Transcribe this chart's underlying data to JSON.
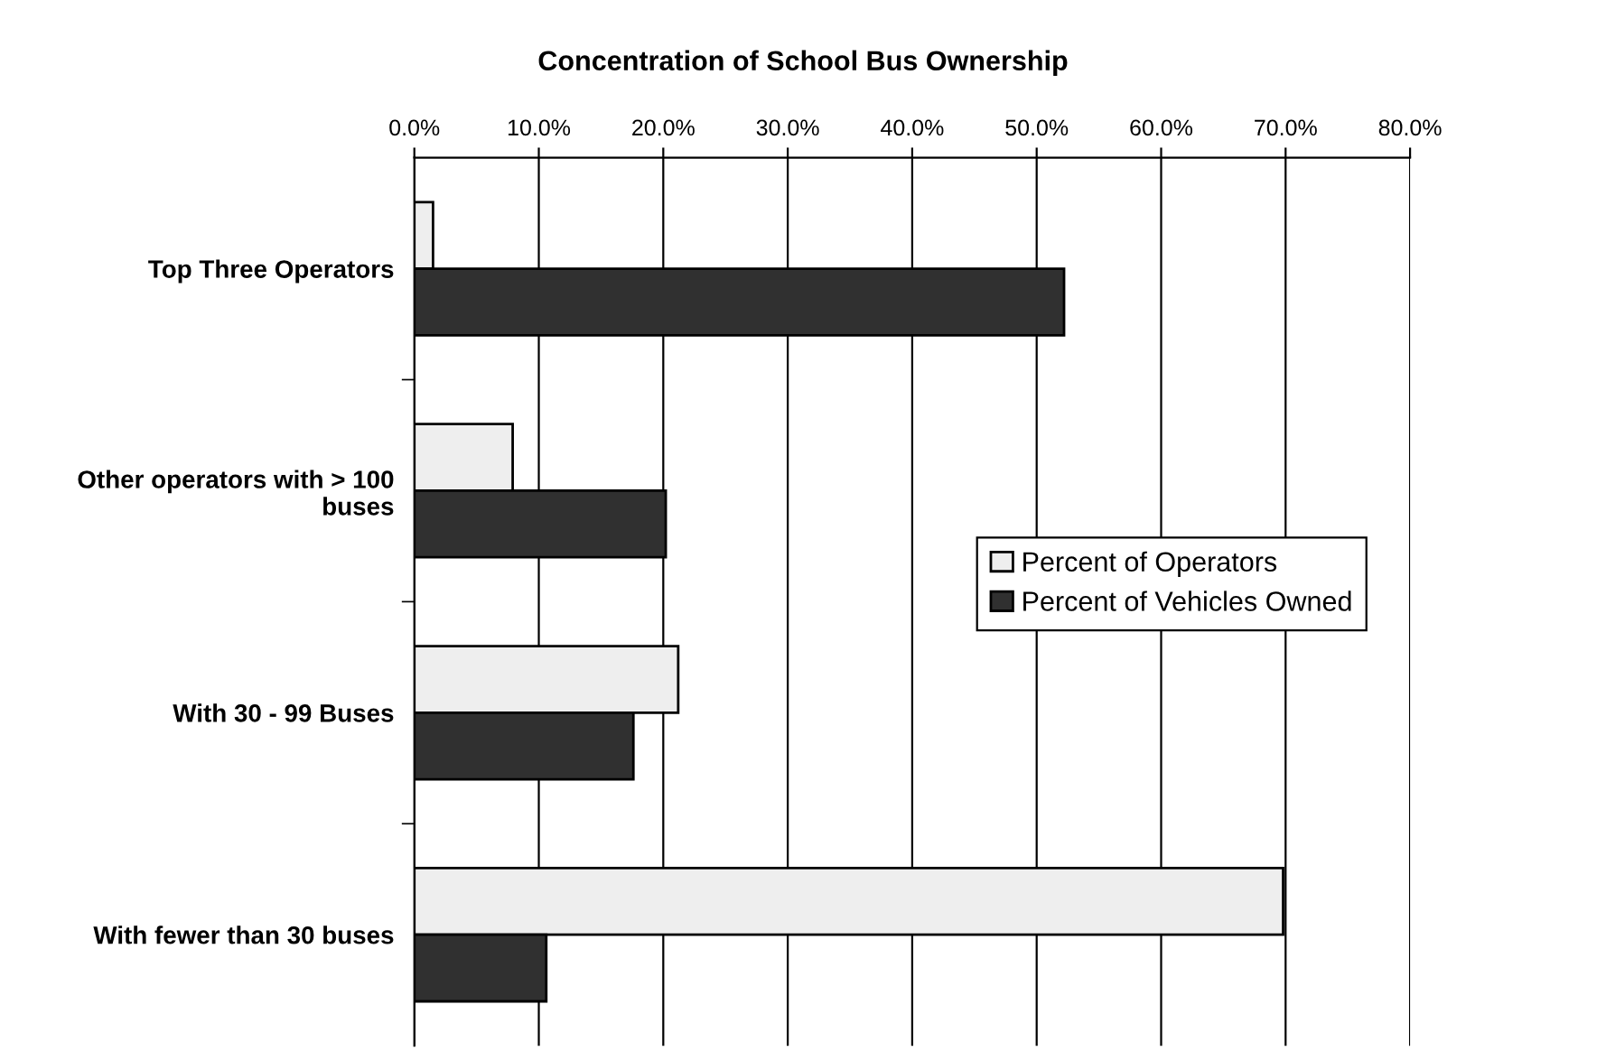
{
  "chart_data": {
    "type": "bar",
    "orientation": "horizontal",
    "title": "Concentration of School Bus Ownership",
    "categories": [
      "Top Three Operators",
      "Other operators with > 100 buses",
      "With 30 - 99 Buses",
      "With fewer than 30 buses"
    ],
    "series": [
      {
        "name": "Percent of Operators",
        "color": "#eeeeee",
        "values": [
          1.5,
          7.9,
          21.2,
          69.8
        ]
      },
      {
        "name": "Percent of Vehicles Owned",
        "color": "#303030",
        "values": [
          52.2,
          20.2,
          17.6,
          10.6
        ]
      }
    ],
    "xlim": [
      0,
      80
    ],
    "xticks": [
      {
        "value": 0,
        "label": "0.0%"
      },
      {
        "value": 10,
        "label": "10.0%"
      },
      {
        "value": 20,
        "label": "20.0%"
      },
      {
        "value": 30,
        "label": "30.0%"
      },
      {
        "value": 40,
        "label": "40.0%"
      },
      {
        "value": 50,
        "label": "50.0%"
      },
      {
        "value": 60,
        "label": "60.0%"
      },
      {
        "value": 70,
        "label": "70.0%"
      },
      {
        "value": 80,
        "label": "80.0%"
      }
    ],
    "grid": "x",
    "legend": "right"
  }
}
